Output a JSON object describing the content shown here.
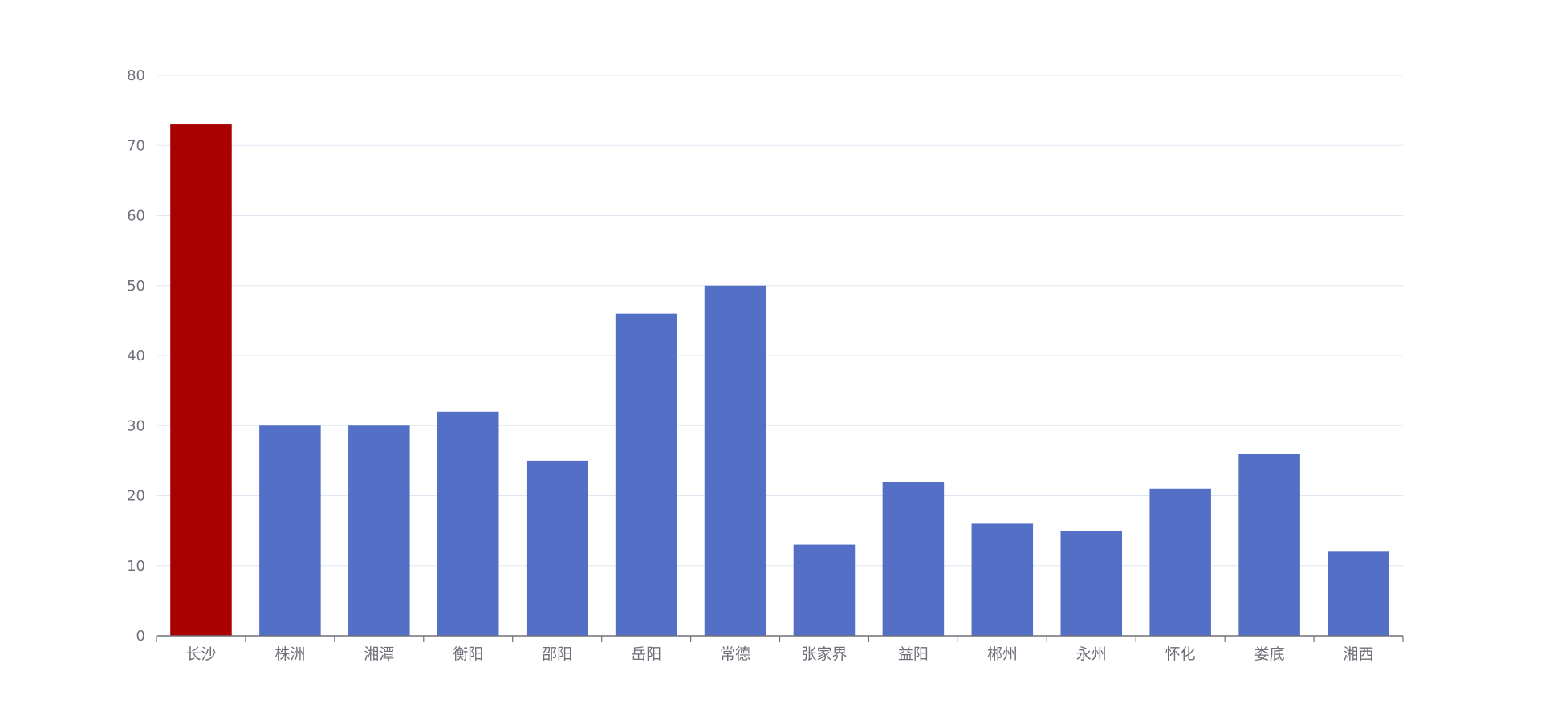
{
  "chart_data": {
    "type": "bar",
    "categories": [
      "长沙",
      "株洲",
      "湘潭",
      "衡阳",
      "邵阳",
      "岳阳",
      "常德",
      "张家界",
      "益阳",
      "郴州",
      "永州",
      "怀化",
      "娄底",
      "湘西"
    ],
    "values": [
      73,
      30,
      30,
      32,
      25,
      46,
      50,
      13,
      22,
      16,
      15,
      21,
      26,
      12
    ],
    "title": "",
    "xlabel": "",
    "ylabel": "",
    "ylim": [
      0,
      80
    ],
    "yticks": [
      "0",
      "10",
      "20",
      "30",
      "40",
      "50",
      "60",
      "70",
      "80"
    ],
    "grid": true,
    "colors": {
      "default_bar": "#5470c6",
      "highlight_bar": "#a90000",
      "grid": "#e0e6f1",
      "axis": "#6e7079",
      "label": "#6e7079"
    },
    "highlight_index": 0
  }
}
